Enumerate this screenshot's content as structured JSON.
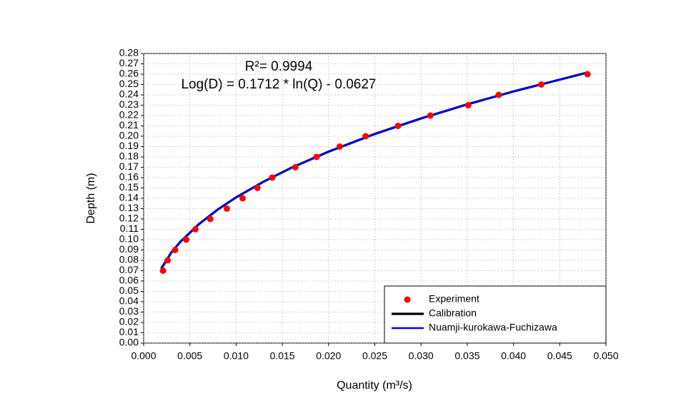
{
  "chart_data": {
    "type": "scatter",
    "annotations": [
      "R²= 0.9994",
      "Log(D) = 0.1712 * ln(Q) - 0.0627"
    ],
    "x_label": "Quantity (m³/s)",
    "y_label": "Depth (m)",
    "xlim": [
      0,
      0.05
    ],
    "ylim": [
      0,
      0.28
    ],
    "xticks": [
      {
        "value": 0,
        "label": "0.000"
      },
      0.005,
      {
        "value": 0.01,
        "label": "0.010"
      },
      0.015,
      {
        "value": 0.02,
        "label": "0.020"
      },
      0.025,
      {
        "value": 0.03,
        "label": "0.030"
      },
      0.035,
      {
        "value": 0.04,
        "label": "0.040"
      },
      0.045,
      {
        "value": 0.05,
        "label": "0.050"
      }
    ],
    "yticks": [
      {
        "value": 0,
        "label": "0.00"
      },
      0.01,
      0.02,
      0.03,
      0.04,
      0.05,
      0.06,
      0.07,
      0.08,
      0.09,
      {
        "value": 0.1,
        "label": "0.10"
      },
      0.11,
      0.12,
      0.13,
      0.14,
      0.15,
      0.16,
      0.17,
      0.18,
      0.19,
      {
        "value": 0.2,
        "label": "0.20"
      },
      0.21,
      0.22,
      0.23,
      0.24,
      0.25,
      0.26,
      0.27,
      0.28
    ],
    "grid": true,
    "legend": "lower right",
    "series": [
      {
        "name": "Experiment",
        "type": "scatter",
        "color": "#ff0000",
        "x": [
          0.0021,
          0.0026,
          0.0034,
          0.0046,
          0.0056,
          0.0072,
          0.009,
          0.0107,
          0.0123,
          0.0139,
          0.0164,
          0.0187,
          0.0212,
          0.024,
          0.0275,
          0.031,
          0.0351,
          0.0384,
          0.043,
          0.048
        ],
        "values": [
          0.07,
          0.08,
          0.09,
          0.1,
          0.11,
          0.12,
          0.13,
          0.14,
          0.15,
          0.16,
          0.17,
          0.18,
          0.19,
          0.2,
          0.21,
          0.22,
          0.23,
          0.24,
          0.25,
          0.26
        ]
      },
      {
        "name": "Calibration",
        "type": "line",
        "color": "#000000",
        "x": [
          0.0019,
          0.003,
          0.004,
          0.006,
          0.008,
          0.01,
          0.013,
          0.016,
          0.02,
          0.025,
          0.03,
          0.035,
          0.04,
          0.048
        ],
        "values": [
          0.072,
          0.0877,
          0.0982,
          0.1152,
          0.129,
          0.1409,
          0.1562,
          0.1696,
          0.1851,
          0.2022,
          0.2172,
          0.2308,
          0.2433,
          0.2616
        ]
      },
      {
        "name": "Nuamji-kurokawa-Fuchizawa",
        "type": "line",
        "color": "#0000ff",
        "x": [
          0.0019,
          0.003,
          0.004,
          0.006,
          0.008,
          0.01,
          0.013,
          0.016,
          0.02,
          0.025,
          0.03,
          0.035,
          0.04,
          0.048
        ],
        "values": [
          0.071,
          0.0875,
          0.098,
          0.115,
          0.1289,
          0.1408,
          0.156,
          0.1694,
          0.1849,
          0.202,
          0.2171,
          0.2307,
          0.2432,
          0.2614
        ]
      }
    ]
  }
}
